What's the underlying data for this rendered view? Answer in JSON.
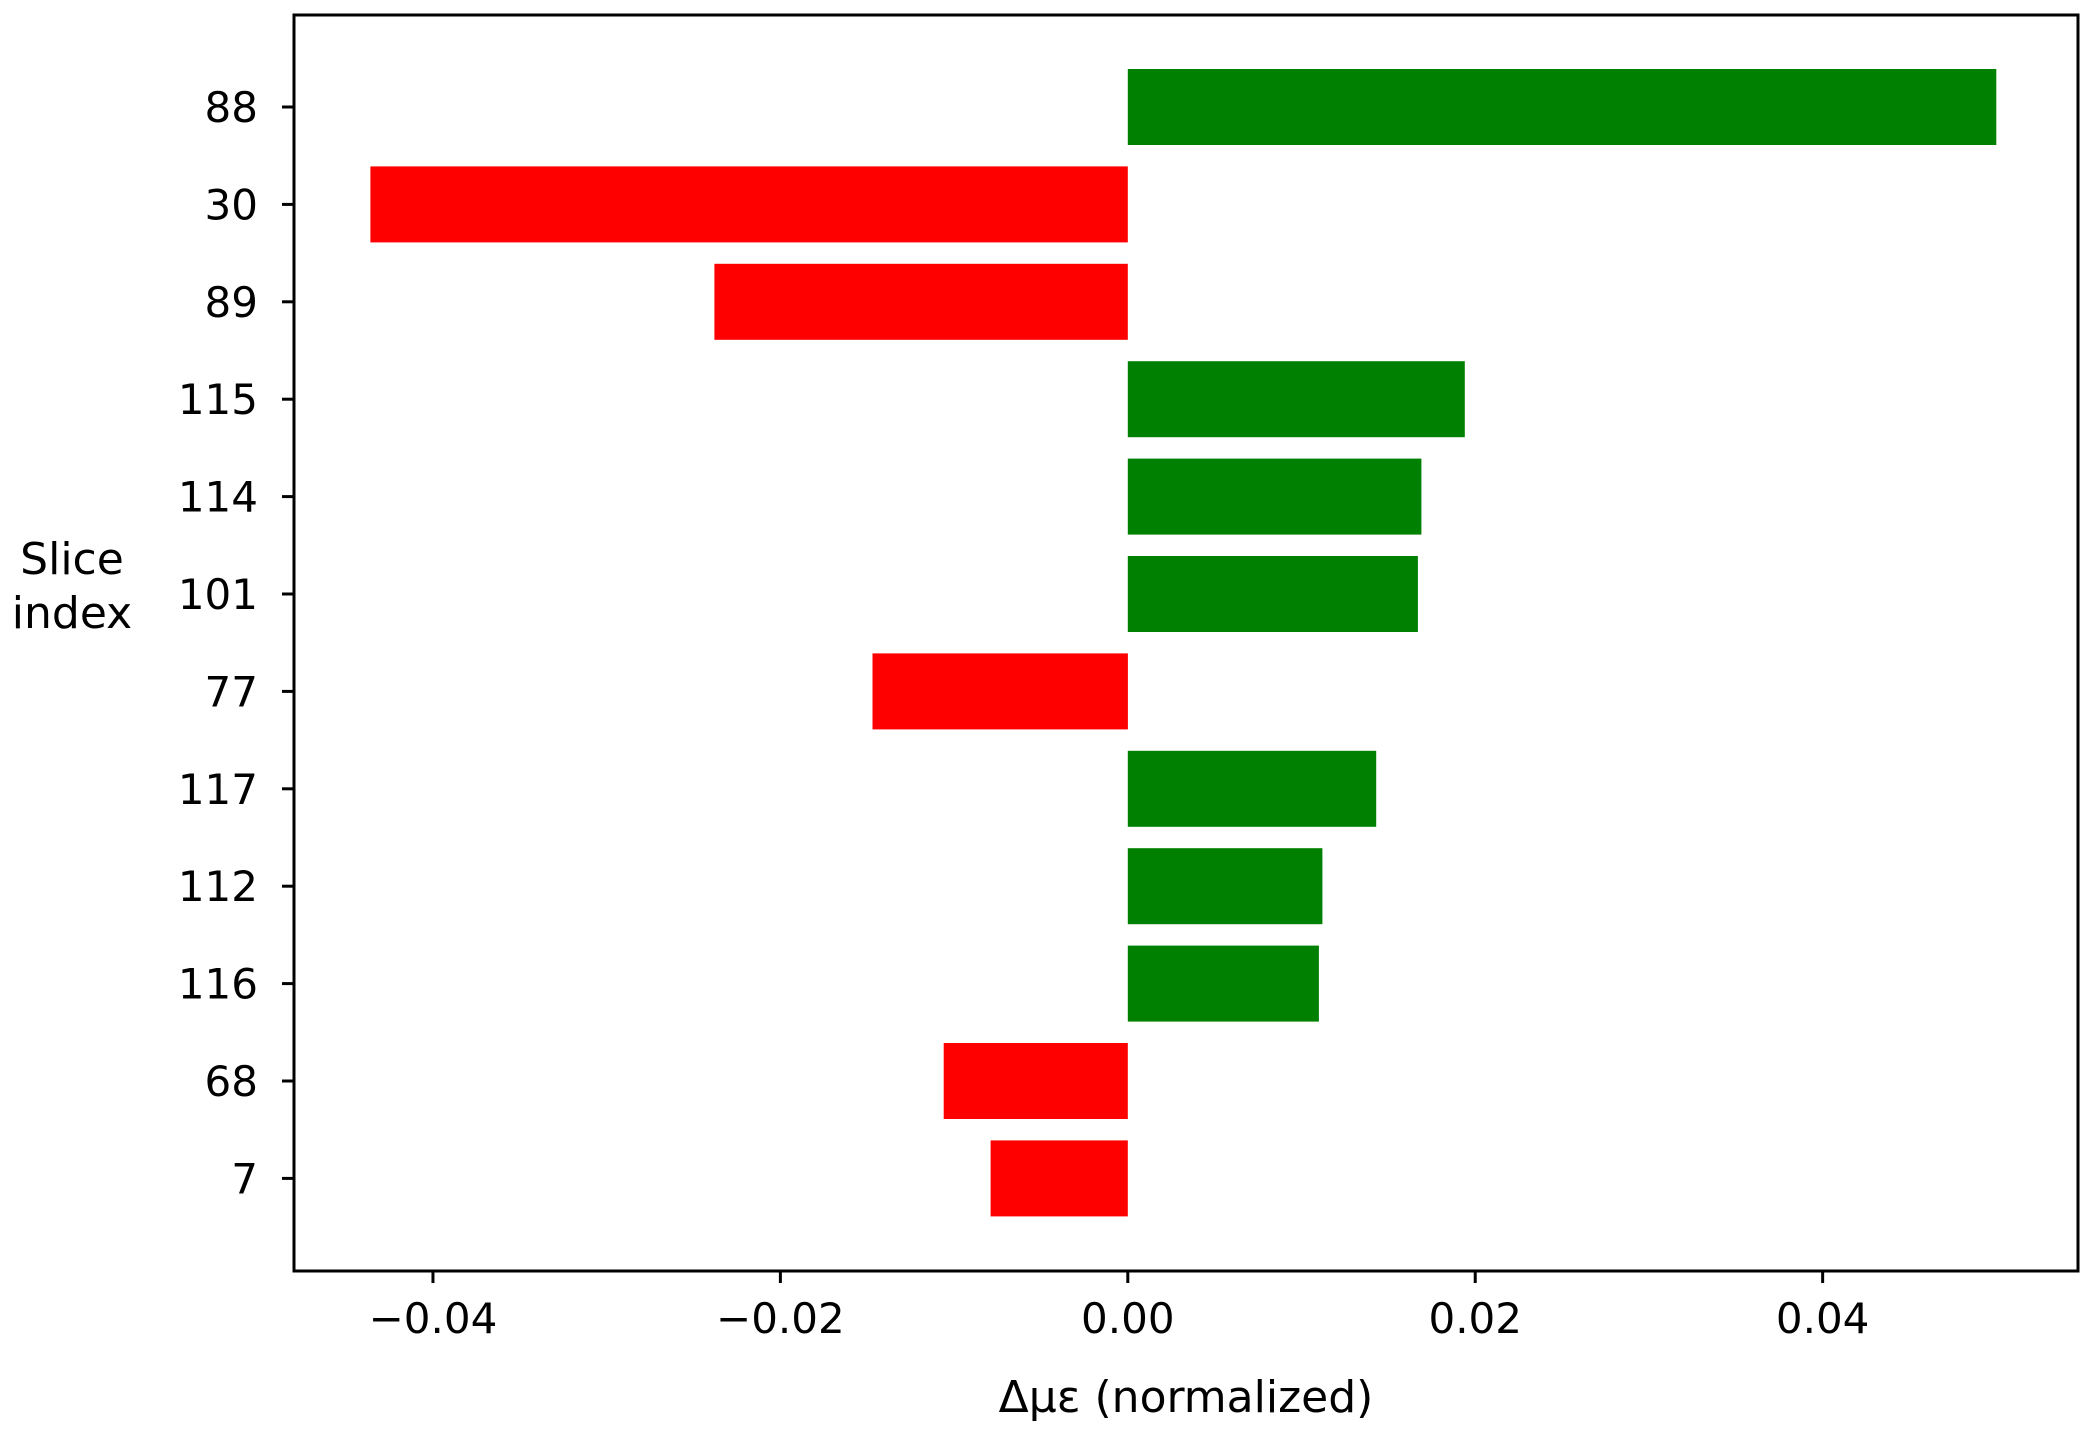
{
  "chart_data": {
    "type": "bar",
    "orientation": "horizontal",
    "title": "",
    "xlabel": "Δμε (normalized)",
    "ylabel": "Slice\nindex",
    "categories": [
      "88",
      "30",
      "89",
      "115",
      "114",
      "101",
      "77",
      "117",
      "112",
      "116",
      "68",
      "7"
    ],
    "values": [
      0.05,
      -0.0436,
      -0.0238,
      0.0194,
      0.0169,
      0.0167,
      -0.0147,
      0.0143,
      0.0112,
      0.011,
      -0.0106,
      -0.0079
    ],
    "xlim": [
      -0.048,
      0.0547
    ],
    "xticks": [
      -0.04,
      -0.02,
      0.0,
      0.02,
      0.04
    ],
    "xtick_labels": [
      "−0.04",
      "−0.02",
      "0.00",
      "0.02",
      "0.04"
    ],
    "grid": false,
    "legend": "none",
    "colors": {
      "positive": "#008000",
      "negative": "#ff0000",
      "axes": "#000000",
      "background": "#ffffff"
    }
  }
}
